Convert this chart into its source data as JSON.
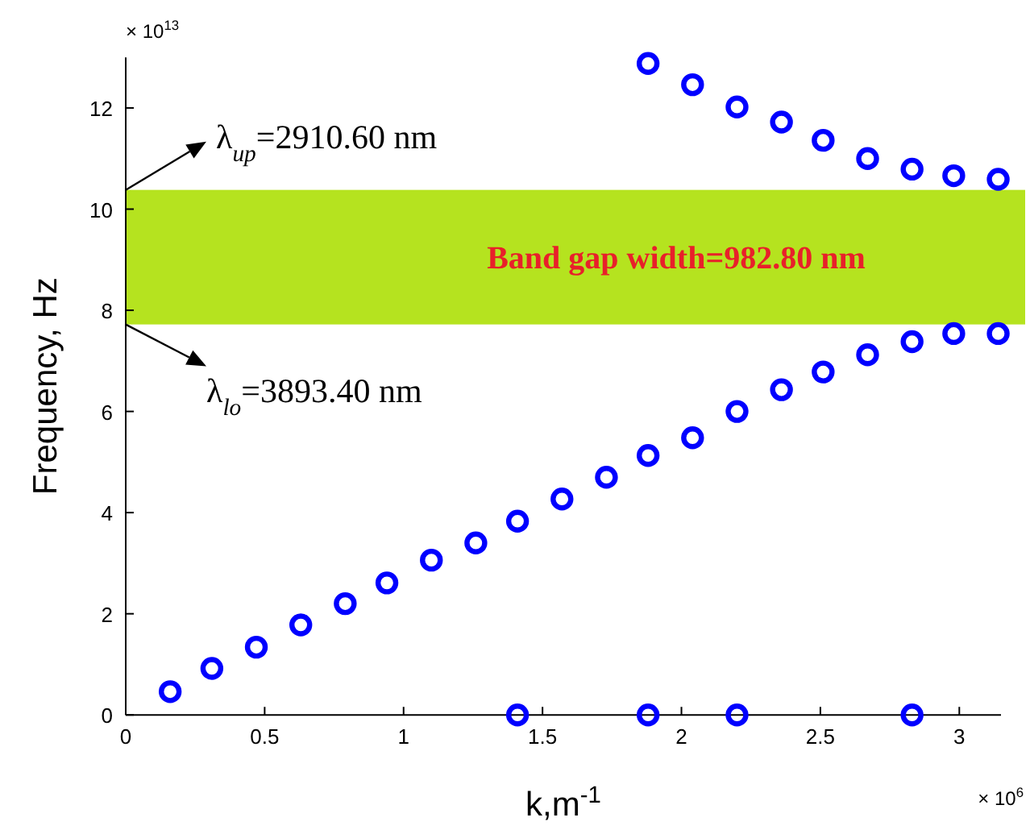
{
  "chart_data": {
    "type": "scatter",
    "xlabel": "k,m$^{-1}$",
    "ylabel": "Frequency, Hz",
    "xlim": [
      0,
      3.15
    ],
    "ylim": [
      0,
      13
    ],
    "xticks": [
      0,
      0.5,
      1,
      1.5,
      2,
      2.5,
      3
    ],
    "yticks": [
      0,
      2,
      4,
      6,
      8,
      10,
      12
    ],
    "grid": false,
    "marker": "circle",
    "series": [
      {
        "color": "#0000ff",
        "x": [
          0.16,
          0.31,
          0.47,
          0.63,
          0.79,
          0.94,
          1.1,
          1.26,
          1.41,
          1.57,
          1.73,
          1.88,
          2.04,
          2.2,
          2.36,
          2.51,
          2.67,
          2.83,
          2.98,
          3.14
        ],
        "values": [
          0.46,
          0.92,
          1.34,
          1.78,
          2.2,
          2.61,
          3.06,
          3.4,
          3.83,
          4.27,
          4.7,
          5.13,
          5.48,
          6.0,
          6.43,
          6.78,
          7.12,
          7.38,
          7.54,
          7.54
        ]
      },
      {
        "color": "#0000ff",
        "x": [
          1.88,
          2.04,
          2.2,
          2.36,
          2.51,
          2.67,
          2.83,
          2.98,
          3.14
        ],
        "values": [
          12.88,
          12.46,
          12.02,
          11.72,
          11.36,
          11.0,
          10.79,
          10.66,
          10.59
        ]
      },
      {
        "color": "#0000ff",
        "x": [
          1.41,
          1.88,
          2.2,
          2.83
        ],
        "values": [
          0,
          0,
          0,
          0
        ]
      }
    ],
    "bands": [
      {
        "axis": "y",
        "from": 7.72,
        "to": 10.38,
        "label": "Band gap width=982.80 nm",
        "color": "#b5e31f"
      }
    ],
    "annotations": [
      {
        "text": "λ$_{up}$=2910.60 nm",
        "x": 0,
        "y": 10.38
      },
      {
        "text": "λ$_{lo}$=3893.40 nm",
        "x": 0,
        "y": 7.72
      },
      "× 10$^{13}$",
      "× 10$^{6}$"
    ]
  }
}
